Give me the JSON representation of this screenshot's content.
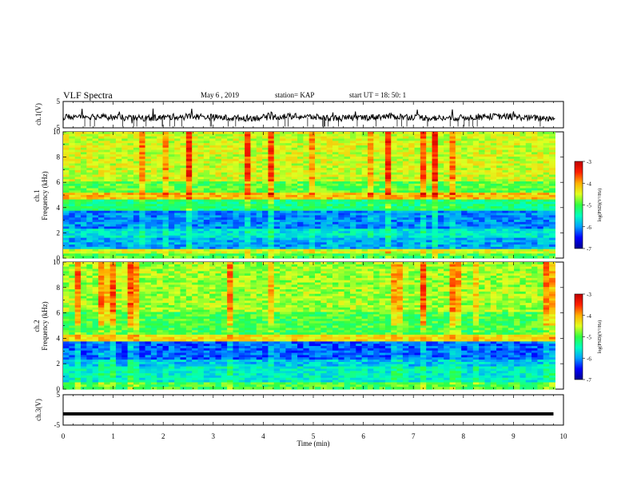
{
  "header": {
    "title": "VLF Spectra",
    "date": "May 6 , 2019",
    "station": "station= KAP",
    "start": "start UT = 18: 50: 1"
  },
  "colors": {
    "trace": "#000000",
    "colormap": [
      "#00008f",
      "#0000ff",
      "#00a0ff",
      "#00ffc0",
      "#30ff40",
      "#e0ff20",
      "#ffb000",
      "#ff2000",
      "#c00000"
    ]
  },
  "chart_data": [
    {
      "type": "line",
      "panel": "ch1",
      "ylabel": "ch.1(V)",
      "ylim": [
        -5,
        5
      ],
      "yticks": [
        "-5",
        "5"
      ],
      "xlim": [
        0,
        10
      ],
      "series_description": "noisy waveform around -1 V"
    },
    {
      "type": "heatmap",
      "panel": "ch1-spectrogram",
      "ylabel_top": "ch.1",
      "ylabel": "Frequency (kHz)",
      "ylim": [
        0,
        10
      ],
      "yticks": [
        "0",
        "2",
        "4",
        "6",
        "8",
        "10"
      ],
      "xlim": [
        0,
        10
      ],
      "colorbar": {
        "label": "log(PSD)(V²/Hz)",
        "range": [
          -7,
          -3
        ],
        "ticks": [
          "-3",
          "-4",
          "-5",
          "-6",
          "-7"
        ]
      }
    },
    {
      "type": "heatmap",
      "panel": "ch2-spectrogram",
      "ylabel_top": "ch.2",
      "ylabel": "Frequency (kHz)",
      "ylim": [
        0,
        10
      ],
      "yticks": [
        "0",
        "2",
        "4",
        "6",
        "8",
        "10"
      ],
      "xlim": [
        0,
        10
      ],
      "colorbar": {
        "label": "log(PSD)(V²/Hz)",
        "range": [
          -7,
          -3
        ],
        "ticks": [
          "-3",
          "-4",
          "-5",
          "-6",
          "-7"
        ]
      }
    },
    {
      "type": "line",
      "panel": "ch3",
      "ylabel": "ch.3(V)",
      "ylim": [
        -5,
        5
      ],
      "yticks": [
        "-5",
        "5"
      ],
      "xlim": [
        0,
        10
      ],
      "x": [
        0,
        9.8
      ],
      "y": [
        -1.3,
        -1.3
      ]
    }
  ],
  "xaxis": {
    "label": "Time (min)",
    "ticks": [
      "0",
      "1",
      "2",
      "3",
      "4",
      "5",
      "6",
      "7",
      "8",
      "9",
      "10"
    ]
  }
}
